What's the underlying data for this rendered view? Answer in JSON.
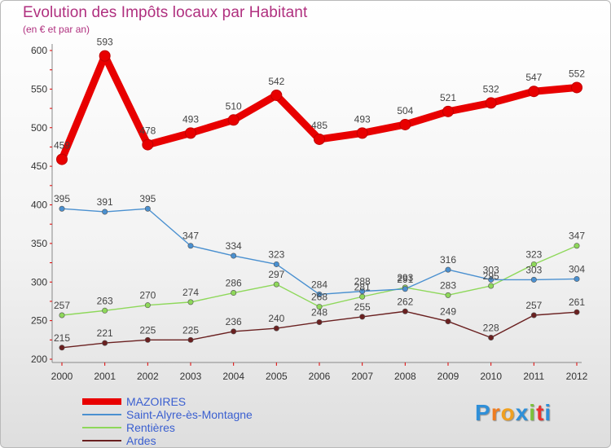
{
  "title": "Evolution des Impôts locaux par Habitant",
  "subtitle": "(en € et par an)",
  "brand": {
    "letters": [
      "P",
      "r",
      "o",
      "x",
      "i",
      "t",
      "i"
    ],
    "colors": [
      "#2f8fd8",
      "#f07c1f",
      "#f0a020",
      "#2f8fd8",
      "#7cc13a",
      "#e9332f",
      "#2f8fd8"
    ]
  },
  "chart_data": {
    "type": "line",
    "title": "Evolution des Impôts locaux par Habitant",
    "subtitle": "(en € et par an)",
    "x": [
      "2000",
      "2001",
      "2002",
      "2003",
      "2004",
      "2005",
      "2006",
      "2007",
      "2008",
      "2009",
      "2010",
      "2011",
      "2012"
    ],
    "ylim": [
      200,
      600
    ],
    "yticks": [
      200,
      250,
      300,
      350,
      400,
      450,
      500,
      550,
      600
    ],
    "grid": false,
    "legend_position": "bottom-left",
    "series": [
      {
        "name": "MAZOIRES",
        "color": "#e80000",
        "values": [
          459,
          593,
          478,
          493,
          510,
          542,
          485,
          493,
          504,
          521,
          532,
          547,
          552
        ],
        "labels": [
          "459",
          "593",
          "478",
          "493",
          "510",
          "542",
          "485",
          "493",
          "504",
          "521",
          "532",
          "547",
          "552"
        ]
      },
      {
        "name": "Saint-Alyre-ès-Montagne",
        "color": "#4a90d0",
        "values": [
          395,
          391,
          395,
          347,
          334,
          323,
          284,
          288,
          291,
          316,
          303,
          303,
          304
        ],
        "labels": [
          "395",
          "391",
          "395",
          "347",
          "334",
          "323",
          "284",
          "288",
          "291",
          "316",
          "303",
          "303",
          "304"
        ]
      },
      {
        "name": "Rentières",
        "color": "#8ed85a",
        "values": [
          257,
          263,
          270,
          274,
          286,
          297,
          268,
          281,
          293,
          283,
          295,
          323,
          347
        ],
        "labels": [
          "257",
          "263",
          "270",
          "274",
          "286",
          "297",
          "268",
          "281",
          "293",
          "283",
          "295",
          "323",
          "347"
        ]
      },
      {
        "name": "Ardes",
        "color": "#6a2020",
        "values": [
          215,
          221,
          225,
          225,
          236,
          240,
          248,
          255,
          262,
          249,
          228,
          257,
          261
        ],
        "labels": [
          "215",
          "221",
          "225",
          "225",
          "236",
          "240",
          "248",
          "255",
          "262",
          "249",
          "228",
          "257",
          "261"
        ]
      }
    ]
  }
}
